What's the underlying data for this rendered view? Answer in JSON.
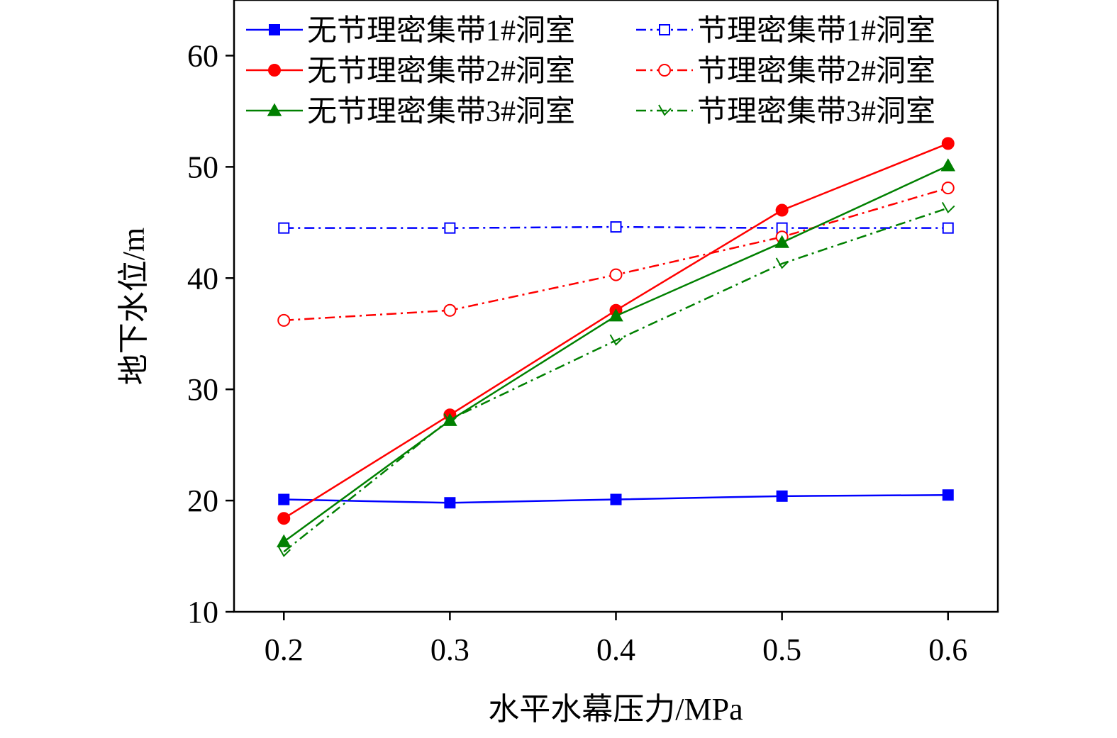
{
  "chart_data": {
    "type": "line",
    "title": "",
    "xlabel": "水平水幕压力/MPa",
    "ylabel": "地下水位/m",
    "xlim": [
      0.17,
      0.63
    ],
    "ylim": [
      10,
      65
    ],
    "x": [
      0.2,
      0.3,
      0.4,
      0.5,
      0.6
    ],
    "xticks": [
      "0.2",
      "0.3",
      "0.4",
      "0.5",
      "0.6"
    ],
    "yticks": [
      "10",
      "20",
      "30",
      "40",
      "50",
      "60"
    ],
    "ytick_values": [
      10,
      20,
      30,
      40,
      50,
      60
    ],
    "grid": false,
    "legend_position": "top",
    "series": [
      {
        "name": "无节理密集带1#洞室",
        "color": "#0000ff",
        "dash": "solid",
        "marker": "square-filled",
        "values": [
          20.1,
          19.8,
          20.1,
          20.4,
          20.5
        ]
      },
      {
        "name": "节理密集带1#洞室",
        "color": "#0000ff",
        "dash": "dashdot",
        "marker": "square-open",
        "values": [
          44.5,
          44.5,
          44.6,
          44.5,
          44.5
        ]
      },
      {
        "name": "无节理密集带2#洞室",
        "color": "#ff0000",
        "dash": "solid",
        "marker": "circle-filled",
        "values": [
          18.4,
          27.7,
          37.1,
          46.1,
          52.1
        ]
      },
      {
        "name": "节理密集带2#洞室",
        "color": "#ff0000",
        "dash": "dashdot",
        "marker": "circle-open",
        "values": [
          36.2,
          37.1,
          40.3,
          43.7,
          48.1
        ]
      },
      {
        "name": "无节理密集带3#洞室",
        "color": "#008000",
        "dash": "solid",
        "marker": "triangle-filled",
        "values": [
          16.3,
          27.2,
          36.6,
          43.2,
          50.1
        ]
      },
      {
        "name": "节理密集带3#洞室",
        "color": "#008000",
        "dash": "dashdot",
        "marker": "triangle-open",
        "values": [
          15.4,
          27.3,
          34.4,
          41.3,
          46.3
        ]
      }
    ]
  }
}
